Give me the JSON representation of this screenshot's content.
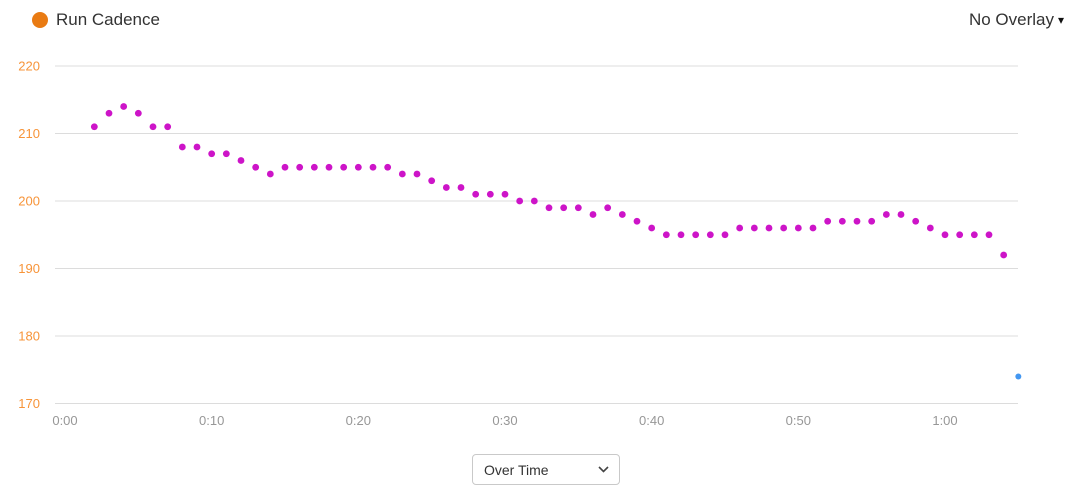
{
  "header": {
    "legend": {
      "label": "Run Cadence",
      "dot_color": "#E97B13"
    },
    "overlay_dropdown": {
      "label": "No Overlay",
      "caret": "▾"
    }
  },
  "chart_data": {
    "type": "scatter",
    "title": "Run Cadence",
    "xlabel": "",
    "ylabel": "",
    "x_axis": {
      "tick_labels": [
        "0:00",
        "0:10",
        "0:20",
        "0:30",
        "0:40",
        "0:50",
        "1:00"
      ],
      "tick_minutes": [
        0,
        10,
        20,
        30,
        40,
        50,
        60
      ],
      "tick_color": "#979797"
    },
    "y_axis": {
      "ticks": [
        220,
        210,
        200,
        190,
        180,
        170
      ],
      "range": [
        170,
        220
      ],
      "tick_color": "#F79439"
    },
    "grid": {
      "horizontal": true,
      "vertical": false,
      "color": "#DCDCDC"
    },
    "legend_position": "top-left",
    "series": [
      {
        "name": "Run Cadence",
        "color": "#CD14C8",
        "point_radius": 3.4,
        "x_minutes": [
          2,
          3,
          4,
          5,
          6,
          7,
          8,
          9,
          10,
          11,
          12,
          13,
          14,
          15,
          16,
          17,
          18,
          19,
          20,
          21,
          22,
          23,
          24,
          25,
          26,
          27,
          28,
          29,
          30,
          31,
          32,
          33,
          34,
          35,
          36,
          37,
          38,
          39,
          40,
          41,
          42,
          43,
          44,
          45,
          46,
          47,
          48,
          49,
          50,
          51,
          52,
          53,
          54,
          55,
          56,
          57,
          58,
          59,
          60,
          61,
          62,
          63,
          64
        ],
        "values": [
          211,
          213,
          214,
          213,
          211,
          211,
          208,
          208,
          207,
          207,
          206,
          205,
          204,
          205,
          205,
          205,
          205,
          205,
          205,
          205,
          205,
          204,
          204,
          203,
          202,
          202,
          201,
          201,
          201,
          200,
          200,
          199,
          199,
          199,
          198,
          199,
          198,
          197,
          196,
          195,
          195,
          195,
          195,
          195,
          196,
          196,
          196,
          196,
          196,
          196,
          197,
          197,
          197,
          197,
          198,
          198,
          197,
          196,
          195,
          195,
          195,
          195,
          192
        ]
      },
      {
        "name": "Overlay point",
        "color": "#4397F1",
        "point_radius": 3,
        "x_minutes": [
          65
        ],
        "values": [
          174
        ]
      }
    ]
  },
  "footer": {
    "mode_select": {
      "value": "Over Time",
      "options": [
        "Over Time"
      ]
    }
  }
}
